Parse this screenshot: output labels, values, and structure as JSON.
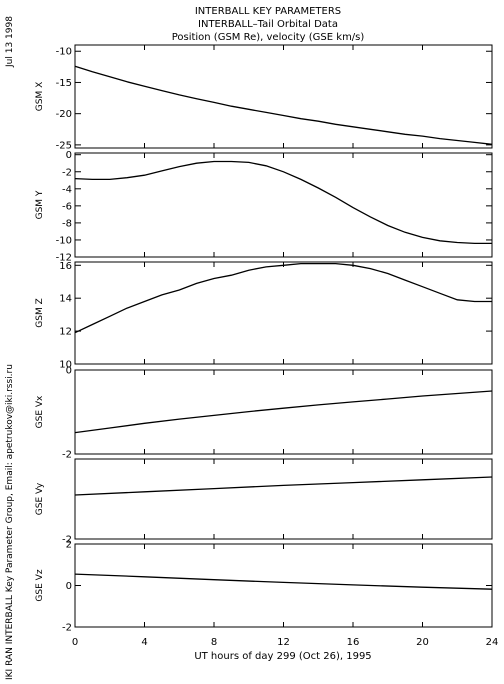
{
  "date_label": "Jul 13 1998",
  "credit_label": "IKI RAN INTERBALL Key Parameter Group, Email: apetrukov@iki.rssi.ru",
  "titles": [
    "INTERBALL KEY PARAMETERS",
    "INTERBALL–Tail Orbital Data",
    "Position (GSM Re), velocity (GSE km/s)"
  ],
  "xlabel": "UT hours of day 299 (Oct 26), 1995",
  "x_ticks": [
    0,
    4,
    8,
    12,
    16,
    20,
    24
  ],
  "chart_data": [
    {
      "type": "line",
      "ylabel": "GSM X",
      "ylim": [
        -25.5,
        -9
      ],
      "y_ticks": [
        -10,
        -15,
        -20,
        -25
      ],
      "x": [
        0,
        1,
        2,
        3,
        4,
        5,
        6,
        7,
        8,
        9,
        10,
        11,
        12,
        13,
        14,
        15,
        16,
        17,
        18,
        19,
        20,
        21,
        22,
        23,
        24
      ],
      "series": [
        {
          "values": [
            -12.4,
            -13.3,
            -14.1,
            -14.9,
            -15.6,
            -16.3,
            -17.0,
            -17.6,
            -18.2,
            -18.8,
            -19.3,
            -19.8,
            -20.3,
            -20.8,
            -21.2,
            -21.7,
            -22.1,
            -22.5,
            -22.9,
            -23.3,
            -23.6,
            -24.0,
            -24.3,
            -24.6,
            -24.9
          ]
        }
      ]
    },
    {
      "type": "line",
      "ylabel": "GSM Y",
      "ylim": [
        -12,
        0.2
      ],
      "y_ticks": [
        0,
        -2,
        -4,
        -6,
        -8,
        -10,
        -12
      ],
      "x": [
        0,
        1,
        2,
        3,
        4,
        5,
        6,
        7,
        8,
        9,
        10,
        11,
        12,
        13,
        14,
        15,
        16,
        17,
        18,
        19,
        20,
        21,
        22,
        23,
        24
      ],
      "series": [
        {
          "values": [
            -2.8,
            -2.9,
            -2.9,
            -2.7,
            -2.4,
            -1.9,
            -1.4,
            -1.0,
            -0.8,
            -0.8,
            -0.9,
            -1.3,
            -2.0,
            -2.9,
            -3.9,
            -5.0,
            -6.2,
            -7.3,
            -8.3,
            -9.1,
            -9.7,
            -10.1,
            -10.3,
            -10.4,
            -10.4
          ]
        }
      ]
    },
    {
      "type": "line",
      "ylabel": "GSM Z",
      "ylim": [
        10,
        16.2
      ],
      "y_ticks": [
        10,
        12,
        14,
        16
      ],
      "x": [
        0,
        1,
        2,
        3,
        4,
        5,
        6,
        7,
        8,
        9,
        10,
        11,
        12,
        13,
        14,
        15,
        16,
        17,
        18,
        19,
        20,
        21,
        22,
        23,
        24
      ],
      "series": [
        {
          "values": [
            11.9,
            12.4,
            12.9,
            13.4,
            13.8,
            14.2,
            14.5,
            14.9,
            15.2,
            15.4,
            15.7,
            15.9,
            16.0,
            16.1,
            16.1,
            16.1,
            16.0,
            15.8,
            15.5,
            15.1,
            14.7,
            14.3,
            13.9,
            13.8,
            13.8
          ]
        }
      ]
    },
    {
      "type": "line",
      "ylabel": "GSE Vx",
      "ylim": [
        -2,
        0
      ],
      "y_ticks": [
        0,
        -2
      ],
      "x": [
        0,
        2,
        4,
        6,
        8,
        10,
        12,
        14,
        16,
        18,
        20,
        22,
        24
      ],
      "series": [
        {
          "values": [
            -1.49,
            -1.38,
            -1.27,
            -1.17,
            -1.08,
            -0.99,
            -0.91,
            -0.83,
            -0.76,
            -0.69,
            -0.62,
            -0.56,
            -0.5
          ]
        }
      ]
    },
    {
      "type": "line",
      "ylabel": "GSE Vy",
      "ylim": [
        -2,
        0
      ],
      "y_ticks": [
        -2
      ],
      "x": [
        0,
        4,
        8,
        12,
        16,
        20,
        24
      ],
      "series": [
        {
          "values": [
            -0.9,
            -0.82,
            -0.74,
            -0.66,
            -0.59,
            -0.52,
            -0.45
          ]
        }
      ]
    },
    {
      "type": "line",
      "ylabel": "GSE Vz",
      "ylim": [
        -2,
        2
      ],
      "y_ticks": [
        2,
        0,
        -2
      ],
      "x": [
        0,
        4,
        8,
        12,
        16,
        20,
        24
      ],
      "series": [
        {
          "values": [
            0.55,
            0.42,
            0.28,
            0.15,
            0.03,
            -0.08,
            -0.18
          ]
        }
      ]
    }
  ]
}
